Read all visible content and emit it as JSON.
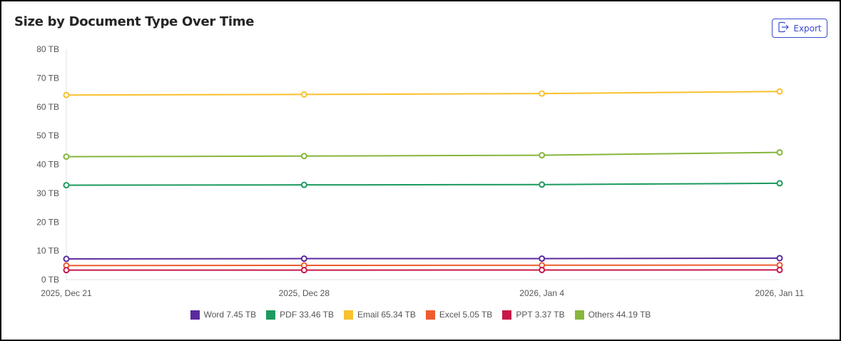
{
  "header": {
    "title": "Size by Document Type Over Time",
    "export_label": "Export",
    "export_icon": "export-icon"
  },
  "legend": [
    {
      "label": "Word 7.45 TB",
      "color": "#5b2a9e"
    },
    {
      "label": "PDF 33.46 TB",
      "color": "#1c9a5f"
    },
    {
      "label": "Email 65.34 TB",
      "color": "#f8c12d"
    },
    {
      "label": "Excel 5.05 TB",
      "color": "#ef5b2f"
    },
    {
      "label": "PPT 3.37 TB",
      "color": "#c8184a"
    },
    {
      "label": "Others 44.19 TB",
      "color": "#86b63c"
    }
  ],
  "chart_data": {
    "type": "line",
    "title": "Size by Document Type Over Time",
    "xlabel": "",
    "ylabel": "",
    "categories": [
      "2025, Dec 21",
      "2025, Dec 28",
      "2026, Jan 4",
      "2026, Jan 11"
    ],
    "y_ticks": [
      "0 TB",
      "10 TB",
      "20 TB",
      "30 TB",
      "40 TB",
      "50 TB",
      "60 TB",
      "70 TB",
      "80 TB"
    ],
    "ylim": [
      0,
      80
    ],
    "y_unit": "TB",
    "grid": false,
    "legend_position": "bottom",
    "series": [
      {
        "name": "Word",
        "color": "#5b2a9e",
        "values": [
          7.2,
          7.3,
          7.3,
          7.45
        ]
      },
      {
        "name": "PDF",
        "color": "#1c9a5f",
        "values": [
          32.8,
          32.9,
          33.0,
          33.46
        ]
      },
      {
        "name": "Email",
        "color": "#f8c12d",
        "values": [
          64.1,
          64.3,
          64.6,
          65.34
        ]
      },
      {
        "name": "Excel",
        "color": "#ef5b2f",
        "values": [
          4.9,
          4.95,
          5.0,
          5.05
        ]
      },
      {
        "name": "PPT",
        "color": "#c8184a",
        "values": [
          3.3,
          3.3,
          3.35,
          3.37
        ]
      },
      {
        "name": "Others",
        "color": "#86b63c",
        "values": [
          42.7,
          42.9,
          43.2,
          44.19
        ]
      }
    ]
  }
}
